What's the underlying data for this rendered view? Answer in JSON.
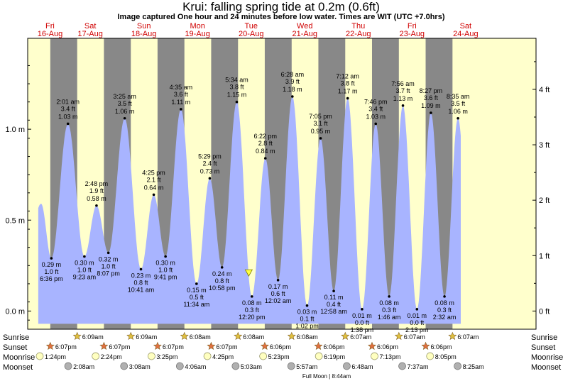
{
  "title": "Krui: falling  spring tide at 0.2m (0.6ft)",
  "subtitle": "Image captured One hour and 24 minutes before low water. Times are WIT (UTC +7.0hrs)",
  "days": [
    {
      "dow": "Fri",
      "date": "16-Aug"
    },
    {
      "dow": "Sat",
      "date": "17-Aug"
    },
    {
      "dow": "Sun",
      "date": "18-Aug"
    },
    {
      "dow": "Mon",
      "date": "19-Aug"
    },
    {
      "dow": "Tue",
      "date": "20-Aug"
    },
    {
      "dow": "Wed",
      "date": "21-Aug"
    },
    {
      "dow": "Thu",
      "date": "22-Aug"
    },
    {
      "dow": "Fri",
      "date": "23-Aug"
    },
    {
      "dow": "Sat",
      "date": "24-Aug"
    }
  ],
  "chart_data": {
    "type": "area",
    "y_left_unit": "m",
    "y_right_unit": "ft",
    "y_left_ticks": [
      "1.0 m",
      "0.5 m",
      "0.0 m"
    ],
    "y_left_tick_values": [
      1.0,
      0.5,
      0.0
    ],
    "y_right_ticks": [
      "4 ft",
      "3 ft",
      "2 ft",
      "1 ft",
      "0 ft"
    ],
    "y_right_tick_values": [
      4,
      3,
      2,
      1,
      0
    ],
    "ylim_m": [
      -0.1,
      1.5
    ],
    "x_range_hours": [
      -16,
      211.5
    ],
    "curve_start": {
      "time": "16-Aug 14:00",
      "height_m": 0.59
    },
    "current_marker": {
      "time": "20-Aug 10:56",
      "height_m": 0.2
    },
    "tides": [
      {
        "type": "low",
        "time": "6:36 pm",
        "date": "16-Aug",
        "m": 0.29,
        "ft": "1.0 ft",
        "m_label": "0.29 m"
      },
      {
        "type": "high",
        "time": "2:01 am",
        "date": "17-Aug",
        "m": 1.03,
        "ft": "3.4 ft",
        "m_label": "1.03 m"
      },
      {
        "type": "low",
        "time": "9:23 am",
        "date": "17-Aug",
        "m": 0.3,
        "ft": "1.0 ft",
        "m_label": "0.30 m"
      },
      {
        "type": "high",
        "time": "2:48 pm",
        "date": "17-Aug",
        "m": 0.58,
        "ft": "1.9 ft",
        "m_label": "0.58 m"
      },
      {
        "type": "low",
        "time": "8:07 pm",
        "date": "17-Aug",
        "m": 0.32,
        "ft": "1.0 ft",
        "m_label": "0.32 m"
      },
      {
        "type": "high",
        "time": "3:25 am",
        "date": "18-Aug",
        "m": 1.06,
        "ft": "3.5 ft",
        "m_label": "1.06 m"
      },
      {
        "type": "low",
        "time": "10:41 am",
        "date": "18-Aug",
        "m": 0.23,
        "ft": "0.8 ft",
        "m_label": "0.23 m"
      },
      {
        "type": "high",
        "time": "4:25 pm",
        "date": "18-Aug",
        "m": 0.64,
        "ft": "2.1 ft",
        "m_label": "0.64 m"
      },
      {
        "type": "low",
        "time": "9:41 pm",
        "date": "18-Aug",
        "m": 0.3,
        "ft": "1.0 ft",
        "m_label": "0.30 m"
      },
      {
        "type": "high",
        "time": "4:35 am",
        "date": "19-Aug",
        "m": 1.11,
        "ft": "3.6 ft",
        "m_label": "1.11 m"
      },
      {
        "type": "low",
        "time": "11:34 am",
        "date": "19-Aug",
        "m": 0.15,
        "ft": "0.5 ft",
        "m_label": "0.15 m"
      },
      {
        "type": "high",
        "time": "5:29 pm",
        "date": "19-Aug",
        "m": 0.73,
        "ft": "2.4 ft",
        "m_label": "0.73 m"
      },
      {
        "type": "low",
        "time": "10:58 pm",
        "date": "19-Aug",
        "m": 0.24,
        "ft": "0.8 ft",
        "m_label": "0.24 m"
      },
      {
        "type": "high",
        "time": "5:34 am",
        "date": "20-Aug",
        "m": 1.15,
        "ft": "3.8 ft",
        "m_label": "1.15 m"
      },
      {
        "type": "low",
        "time": "12:20 pm",
        "date": "20-Aug",
        "m": 0.08,
        "ft": "0.3 ft",
        "m_label": "0.08 m"
      },
      {
        "type": "high",
        "time": "6:22 pm",
        "date": "20-Aug",
        "m": 0.84,
        "ft": "2.8 ft",
        "m_label": "0.84 m"
      },
      {
        "type": "low",
        "time": "12:02 am",
        "date": "21-Aug",
        "m": 0.17,
        "ft": "0.6 ft",
        "m_label": "0.17 m"
      },
      {
        "type": "high",
        "time": "6:28 am",
        "date": "21-Aug",
        "m": 1.18,
        "ft": "3.9 ft",
        "m_label": "1.18 m"
      },
      {
        "type": "low",
        "time": "1:02 pm",
        "date": "21-Aug",
        "m": 0.03,
        "ft": "0.1 ft",
        "m_label": "0.03 m"
      },
      {
        "type": "high",
        "time": "7:05 pm",
        "date": "21-Aug",
        "m": 0.95,
        "ft": "3.1 ft",
        "m_label": "0.95 m"
      },
      {
        "type": "low",
        "time": "12:58 am",
        "date": "22-Aug",
        "m": 0.11,
        "ft": "0.4 ft",
        "m_label": "0.11 m"
      },
      {
        "type": "high",
        "time": "7:12 am",
        "date": "22-Aug",
        "m": 1.17,
        "ft": "3.8 ft",
        "m_label": "1.17 m"
      },
      {
        "type": "low",
        "time": "1:38 pm",
        "date": "22-Aug",
        "m": 0.01,
        "ft": "0.0 ft",
        "m_label": "0.01 m"
      },
      {
        "type": "high",
        "time": "7:46 pm",
        "date": "22-Aug",
        "m": 1.03,
        "ft": "3.4 ft",
        "m_label": "1.03 m"
      },
      {
        "type": "low",
        "time": "1:46 am",
        "date": "23-Aug",
        "m": 0.08,
        "ft": "0.3 ft",
        "m_label": "0.08 m"
      },
      {
        "type": "high",
        "time": "7:56 am",
        "date": "23-Aug",
        "m": 1.13,
        "ft": "3.7 ft",
        "m_label": "1.13 m"
      },
      {
        "type": "low",
        "time": "2:13 pm",
        "date": "23-Aug",
        "m": 0.01,
        "ft": "0.0 ft",
        "m_label": "0.01 m"
      },
      {
        "type": "high",
        "time": "8:27 pm",
        "date": "23-Aug",
        "m": 1.09,
        "ft": "3.6 ft",
        "m_label": "1.09 m"
      },
      {
        "type": "low",
        "time": "2:32 am",
        "date": "24-Aug",
        "m": 0.08,
        "ft": "0.3 ft",
        "m_label": "0.08 m"
      },
      {
        "type": "high",
        "time": "8:35 am",
        "date": "24-Aug",
        "m": 1.06,
        "ft": "3.5 ft",
        "m_label": "1.06 m"
      }
    ],
    "sunrise": [
      {
        "date": "17-Aug",
        "time": "6:09am"
      },
      {
        "date": "18-Aug",
        "time": "6:09am"
      },
      {
        "date": "19-Aug",
        "time": "6:08am"
      },
      {
        "date": "20-Aug",
        "time": "6:08am"
      },
      {
        "date": "21-Aug",
        "time": "6:08am"
      },
      {
        "date": "22-Aug",
        "time": "6:07am"
      },
      {
        "date": "23-Aug",
        "time": "6:07am"
      },
      {
        "date": "24-Aug",
        "time": "6:07am"
      }
    ],
    "sunset": [
      {
        "date": "16-Aug",
        "time": "6:07pm"
      },
      {
        "date": "17-Aug",
        "time": "6:07pm"
      },
      {
        "date": "18-Aug",
        "time": "6:07pm"
      },
      {
        "date": "19-Aug",
        "time": "6:07pm"
      },
      {
        "date": "20-Aug",
        "time": "6:06pm"
      },
      {
        "date": "21-Aug",
        "time": "6:06pm"
      },
      {
        "date": "22-Aug",
        "time": "6:06pm"
      },
      {
        "date": "23-Aug",
        "time": "6:06pm"
      }
    ],
    "moonrise": [
      {
        "date": "16-Aug",
        "time": "1:24pm"
      },
      {
        "date": "17-Aug",
        "time": "2:24pm"
      },
      {
        "date": "18-Aug",
        "time": "3:25pm"
      },
      {
        "date": "19-Aug",
        "time": "4:25pm"
      },
      {
        "date": "20-Aug",
        "time": "5:23pm"
      },
      {
        "date": "21-Aug",
        "time": "6:19pm"
      },
      {
        "date": "22-Aug",
        "time": "7:13pm"
      },
      {
        "date": "23-Aug",
        "time": "8:05pm"
      }
    ],
    "moonset": [
      {
        "date": "17-Aug",
        "time": "2:08am"
      },
      {
        "date": "18-Aug",
        "time": "3:08am"
      },
      {
        "date": "19-Aug",
        "time": "4:06am"
      },
      {
        "date": "20-Aug",
        "time": "5:03am"
      },
      {
        "date": "21-Aug",
        "time": "5:57am"
      },
      {
        "date": "22-Aug",
        "time": "6:48am"
      },
      {
        "date": "23-Aug",
        "time": "7:37am"
      },
      {
        "date": "24-Aug",
        "time": "8:25am"
      }
    ],
    "moon_phase_note": "Full Moon | 8:44am",
    "colors": {
      "day": "#ffffcc",
      "night": "#888888",
      "water": "#a8b4ff",
      "day_label": "#d00000",
      "sun_star": "#e0c040",
      "sunset_star": "#e07040",
      "moon_bright": "#ffffc0",
      "moon_dark": "#b0b0b0",
      "current_marker": "#ffff40"
    }
  },
  "rows": {
    "sunrise": "Sunrise",
    "sunset": "Sunset",
    "moonrise": "Moonrise",
    "moonset": "Moonset"
  }
}
